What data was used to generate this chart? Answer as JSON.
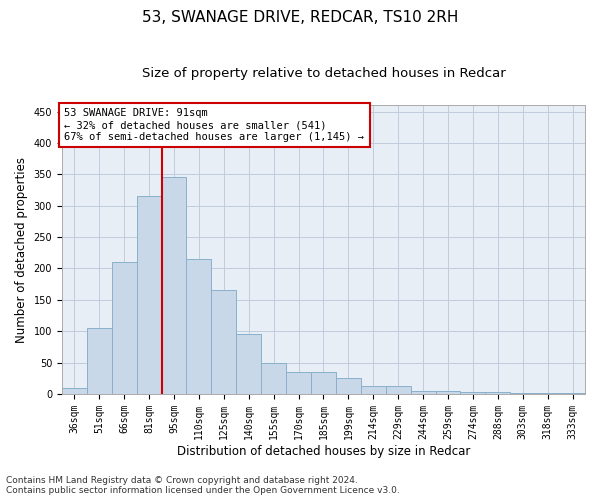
{
  "title": "53, SWANAGE DRIVE, REDCAR, TS10 2RH",
  "subtitle": "Size of property relative to detached houses in Redcar",
  "xlabel": "Distribution of detached houses by size in Redcar",
  "ylabel": "Number of detached properties",
  "categories": [
    "36sqm",
    "51sqm",
    "66sqm",
    "81sqm",
    "95sqm",
    "110sqm",
    "125sqm",
    "140sqm",
    "155sqm",
    "170sqm",
    "185sqm",
    "199sqm",
    "214sqm",
    "229sqm",
    "244sqm",
    "259sqm",
    "274sqm",
    "288sqm",
    "303sqm",
    "318sqm",
    "333sqm"
  ],
  "values": [
    10,
    105,
    210,
    315,
    345,
    215,
    165,
    95,
    50,
    35,
    35,
    25,
    12,
    12,
    5,
    5,
    3,
    3,
    2,
    2,
    2
  ],
  "bar_color": "#c8d8e8",
  "bar_edge_color": "#8ab0cc",
  "grid_color": "#c0ccdd",
  "background_color": "#e8eef5",
  "vline_color": "#cc0000",
  "annotation_text": "53 SWANAGE DRIVE: 91sqm\n← 32% of detached houses are smaller (541)\n67% of semi-detached houses are larger (1,145) →",
  "annotation_box_color": "#ffffff",
  "annotation_box_edge": "#cc0000",
  "ylim": [
    0,
    460
  ],
  "yticks": [
    0,
    50,
    100,
    150,
    200,
    250,
    300,
    350,
    400,
    450
  ],
  "footer_line1": "Contains HM Land Registry data © Crown copyright and database right 2024.",
  "footer_line2": "Contains public sector information licensed under the Open Government Licence v3.0.",
  "title_fontsize": 11,
  "subtitle_fontsize": 9.5,
  "tick_fontsize": 7,
  "ylabel_fontsize": 8.5,
  "xlabel_fontsize": 8.5,
  "annotation_fontsize": 7.5,
  "footer_fontsize": 6.5
}
